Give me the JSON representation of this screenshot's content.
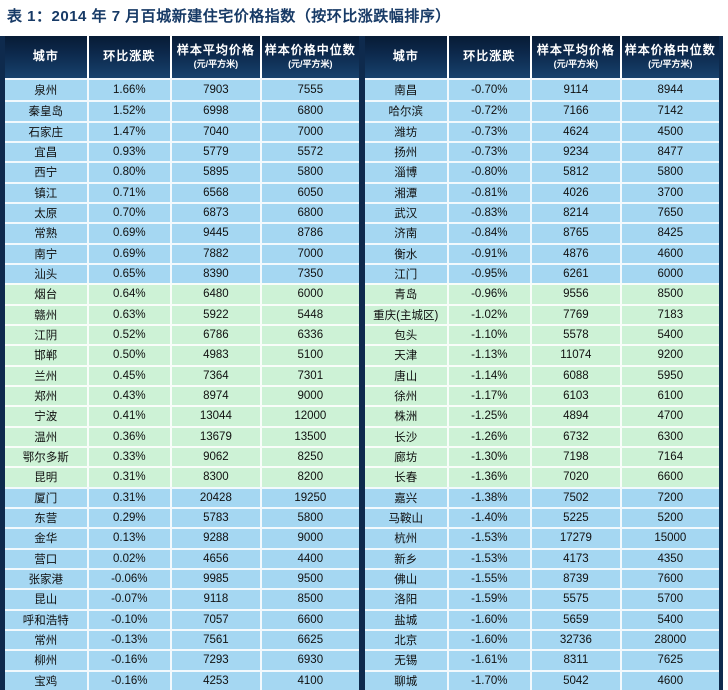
{
  "title": "表 1：2014 年 7 月百城新建住宅价格指数（按环比涨跌幅排序）",
  "colors": {
    "header_navy_top": "#071b35",
    "header_navy_bottom": "#17416d",
    "frame_navy": "#0e2a4d",
    "band_blue": "#a5d7f2",
    "band_green": "#cdf2d6",
    "title_text": "#173a66",
    "header_text": "#ffffff",
    "body_text": "#101010"
  },
  "columns": [
    {
      "label": "城市",
      "sub": ""
    },
    {
      "label": "环比涨跌",
      "sub": ""
    },
    {
      "label": "样本平均价格",
      "sub": "(元/平方米)"
    },
    {
      "label": "样本价格中位数",
      "sub": "(元/平方米)"
    }
  ],
  "left_table": {
    "rows": [
      {
        "city": "泉州",
        "mom_change": "1.66%",
        "avg_price": "7903",
        "median_price": "7555"
      },
      {
        "city": "秦皇岛",
        "mom_change": "1.52%",
        "avg_price": "6998",
        "median_price": "6800"
      },
      {
        "city": "石家庄",
        "mom_change": "1.47%",
        "avg_price": "7040",
        "median_price": "7000"
      },
      {
        "city": "宜昌",
        "mom_change": "0.93%",
        "avg_price": "5779",
        "median_price": "5572"
      },
      {
        "city": "西宁",
        "mom_change": "0.80%",
        "avg_price": "5895",
        "median_price": "5800"
      },
      {
        "city": "镇江",
        "mom_change": "0.71%",
        "avg_price": "6568",
        "median_price": "6050"
      },
      {
        "city": "太原",
        "mom_change": "0.70%",
        "avg_price": "6873",
        "median_price": "6800"
      },
      {
        "city": "常熟",
        "mom_change": "0.69%",
        "avg_price": "9445",
        "median_price": "8786"
      },
      {
        "city": "南宁",
        "mom_change": "0.69%",
        "avg_price": "7882",
        "median_price": "7000"
      },
      {
        "city": "汕头",
        "mom_change": "0.65%",
        "avg_price": "8390",
        "median_price": "7350"
      },
      {
        "city": "烟台",
        "mom_change": "0.64%",
        "avg_price": "6480",
        "median_price": "6000"
      },
      {
        "city": "赣州",
        "mom_change": "0.63%",
        "avg_price": "5922",
        "median_price": "5448"
      },
      {
        "city": "江阴",
        "mom_change": "0.52%",
        "avg_price": "6786",
        "median_price": "6336"
      },
      {
        "city": "邯郸",
        "mom_change": "0.50%",
        "avg_price": "4983",
        "median_price": "5100"
      },
      {
        "city": "兰州",
        "mom_change": "0.45%",
        "avg_price": "7364",
        "median_price": "7301"
      },
      {
        "city": "郑州",
        "mom_change": "0.43%",
        "avg_price": "8974",
        "median_price": "9000"
      },
      {
        "city": "宁波",
        "mom_change": "0.41%",
        "avg_price": "13044",
        "median_price": "12000"
      },
      {
        "city": "温州",
        "mom_change": "0.36%",
        "avg_price": "13679",
        "median_price": "13500"
      },
      {
        "city": "鄂尔多斯",
        "mom_change": "0.33%",
        "avg_price": "9062",
        "median_price": "8250"
      },
      {
        "city": "昆明",
        "mom_change": "0.31%",
        "avg_price": "8300",
        "median_price": "8200"
      },
      {
        "city": "厦门",
        "mom_change": "0.31%",
        "avg_price": "20428",
        "median_price": "19250"
      },
      {
        "city": "东营",
        "mom_change": "0.29%",
        "avg_price": "5783",
        "median_price": "5800"
      },
      {
        "city": "金华",
        "mom_change": "0.13%",
        "avg_price": "9288",
        "median_price": "9000"
      },
      {
        "city": "营口",
        "mom_change": "0.02%",
        "avg_price": "4656",
        "median_price": "4400"
      },
      {
        "city": "张家港",
        "mom_change": "-0.06%",
        "avg_price": "9985",
        "median_price": "9500"
      },
      {
        "city": "昆山",
        "mom_change": "-0.07%",
        "avg_price": "9118",
        "median_price": "8500"
      },
      {
        "city": "呼和浩特",
        "mom_change": "-0.10%",
        "avg_price": "7057",
        "median_price": "6600"
      },
      {
        "city": "常州",
        "mom_change": "-0.13%",
        "avg_price": "7561",
        "median_price": "6625"
      },
      {
        "city": "柳州",
        "mom_change": "-0.16%",
        "avg_price": "7293",
        "median_price": "6930"
      },
      {
        "city": "宝鸡",
        "mom_change": "-0.16%",
        "avg_price": "4253",
        "median_price": "4100"
      }
    ]
  },
  "right_table": {
    "rows": [
      {
        "city": "南昌",
        "mom_change": "-0.70%",
        "avg_price": "9114",
        "median_price": "8944"
      },
      {
        "city": "哈尔滨",
        "mom_change": "-0.72%",
        "avg_price": "7166",
        "median_price": "7142"
      },
      {
        "city": "潍坊",
        "mom_change": "-0.73%",
        "avg_price": "4624",
        "median_price": "4500"
      },
      {
        "city": "扬州",
        "mom_change": "-0.73%",
        "avg_price": "9234",
        "median_price": "8477"
      },
      {
        "city": "淄博",
        "mom_change": "-0.80%",
        "avg_price": "5812",
        "median_price": "5800"
      },
      {
        "city": "湘潭",
        "mom_change": "-0.81%",
        "avg_price": "4026",
        "median_price": "3700"
      },
      {
        "city": "武汉",
        "mom_change": "-0.83%",
        "avg_price": "8214",
        "median_price": "7650"
      },
      {
        "city": "济南",
        "mom_change": "-0.84%",
        "avg_price": "8765",
        "median_price": "8425"
      },
      {
        "city": "衡水",
        "mom_change": "-0.91%",
        "avg_price": "4876",
        "median_price": "4600"
      },
      {
        "city": "江门",
        "mom_change": "-0.95%",
        "avg_price": "6261",
        "median_price": "6000"
      },
      {
        "city": "青岛",
        "mom_change": "-0.96%",
        "avg_price": "9556",
        "median_price": "8500"
      },
      {
        "city": "重庆(主城区)",
        "mom_change": "-1.02%",
        "avg_price": "7769",
        "median_price": "7183"
      },
      {
        "city": "包头",
        "mom_change": "-1.10%",
        "avg_price": "5578",
        "median_price": "5400"
      },
      {
        "city": "天津",
        "mom_change": "-1.13%",
        "avg_price": "11074",
        "median_price": "9200"
      },
      {
        "city": "唐山",
        "mom_change": "-1.14%",
        "avg_price": "6088",
        "median_price": "5950"
      },
      {
        "city": "徐州",
        "mom_change": "-1.17%",
        "avg_price": "6103",
        "median_price": "6100"
      },
      {
        "city": "株洲",
        "mom_change": "-1.25%",
        "avg_price": "4894",
        "median_price": "4700"
      },
      {
        "city": "长沙",
        "mom_change": "-1.26%",
        "avg_price": "6732",
        "median_price": "6300"
      },
      {
        "city": "廊坊",
        "mom_change": "-1.30%",
        "avg_price": "7198",
        "median_price": "7164"
      },
      {
        "city": "长春",
        "mom_change": "-1.36%",
        "avg_price": "7020",
        "median_price": "6600"
      },
      {
        "city": "嘉兴",
        "mom_change": "-1.38%",
        "avg_price": "7502",
        "median_price": "7200"
      },
      {
        "city": "马鞍山",
        "mom_change": "-1.40%",
        "avg_price": "5225",
        "median_price": "5200"
      },
      {
        "city": "杭州",
        "mom_change": "-1.53%",
        "avg_price": "17279",
        "median_price": "15000"
      },
      {
        "city": "新乡",
        "mom_change": "-1.53%",
        "avg_price": "4173",
        "median_price": "4350"
      },
      {
        "city": "佛山",
        "mom_change": "-1.55%",
        "avg_price": "8739",
        "median_price": "7600"
      },
      {
        "city": "洛阳",
        "mom_change": "-1.59%",
        "avg_price": "5575",
        "median_price": "5700"
      },
      {
        "city": "盐城",
        "mom_change": "-1.60%",
        "avg_price": "5659",
        "median_price": "5400"
      },
      {
        "city": "北京",
        "mom_change": "-1.60%",
        "avg_price": "32736",
        "median_price": "28000"
      },
      {
        "city": "无锡",
        "mom_change": "-1.61%",
        "avg_price": "8311",
        "median_price": "7625"
      },
      {
        "city": "聊城",
        "mom_change": "-1.70%",
        "avg_price": "5042",
        "median_price": "4600"
      }
    ]
  }
}
